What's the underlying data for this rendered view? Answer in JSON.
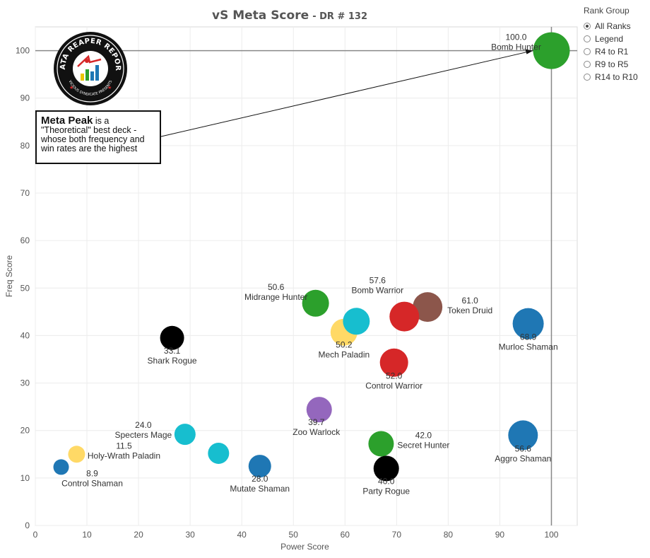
{
  "chart_data": {
    "type": "scatter",
    "title": "vS Meta Score",
    "subtitle": "- DR # 132",
    "xlabel": "Power Score",
    "ylabel": "Freq Score",
    "xlim": [
      0,
      105
    ],
    "ylim": [
      0,
      105
    ],
    "xticks": [
      0,
      10,
      20,
      30,
      40,
      50,
      60,
      70,
      80,
      90,
      100
    ],
    "yticks": [
      0,
      10,
      20,
      30,
      40,
      50,
      60,
      70,
      80,
      90,
      100
    ],
    "grid": true,
    "reference_lines": {
      "x": 100,
      "y": 100
    },
    "points": [
      {
        "name": "Bomb Hunter",
        "score": "100.0",
        "x": 100,
        "y": 100,
        "color": "#2ca02c",
        "size": 26
      },
      {
        "name": "Murloc Shaman",
        "score": "68.9",
        "x": 95.5,
        "y": 42.5,
        "color": "#1f77b4",
        "size": 22
      },
      {
        "name": "Token Druid",
        "score": "61.0",
        "x": 76,
        "y": 46,
        "color": "#8c564b",
        "size": 21
      },
      {
        "name": "Bomb Warrior",
        "score": "57.6",
        "x": 71.5,
        "y": 44,
        "color": "#d62728",
        "size": 21
      },
      {
        "name": "Aggro Shaman",
        "score": "56.6",
        "x": 94.5,
        "y": 19,
        "color": "#1f77b4",
        "size": 21
      },
      {
        "name": "Control Warrior",
        "score": "52.0",
        "x": 69.5,
        "y": 34.3,
        "color": "#d62728",
        "size": 20
      },
      {
        "name": "Midrange Hunter",
        "score": "50.6",
        "x": 54.3,
        "y": 46.8,
        "color": "#2ca02c",
        "size": 19
      },
      {
        "name": "Mech Paladin",
        "score": "50.2",
        "x": 59.8,
        "y": 40.7,
        "color": "#ffd966",
        "size": 19
      },
      {
        "name": "",
        "score": "",
        "x": 62.2,
        "y": 43,
        "color": "#17becf",
        "size": 19
      },
      {
        "name": "Secret Hunter",
        "score": "42.0",
        "x": 67,
        "y": 17.2,
        "color": "#2ca02c",
        "size": 18
      },
      {
        "name": "Party Rogue",
        "score": "40.0",
        "x": 68,
        "y": 12,
        "color": "#000000",
        "size": 18
      },
      {
        "name": "Zoo Warlock",
        "score": "39.7",
        "x": 55,
        "y": 24.4,
        "color": "#9467bd",
        "size": 18
      },
      {
        "name": "Shark Rogue",
        "score": "33.1",
        "x": 26.5,
        "y": 39.5,
        "color": "#000000",
        "size": 17
      },
      {
        "name": "Mutate Shaman",
        "score": "28.0",
        "x": 43.5,
        "y": 12.5,
        "color": "#1f77b4",
        "size": 16
      },
      {
        "name": "Specters Mage",
        "score": "24.0",
        "x": 29,
        "y": 19.2,
        "color": "#17becf",
        "size": 15
      },
      {
        "name": "",
        "score": "",
        "x": 35.5,
        "y": 15.2,
        "color": "#17becf",
        "size": 15
      },
      {
        "name": "Holy-Wrath Paladin",
        "score": "11.5",
        "x": 8,
        "y": 15,
        "color": "#ffd966",
        "size": 12
      },
      {
        "name": "Control Shaman",
        "score": "8.9",
        "x": 5,
        "y": 12.3,
        "color": "#1f77b4",
        "size": 11
      }
    ]
  },
  "legend": {
    "title": "Rank Group",
    "options": [
      "All Ranks",
      "Legend",
      "R4 to R1",
      "R9 to R5",
      "R14 to R10"
    ],
    "selected": "All Ranks"
  },
  "callout": {
    "bold": "Meta Peak",
    "text": " is a \"Theoretical\" best deck - whose both frequency and win rates are the highest"
  },
  "logo": {
    "text_top": "DATA REAPER REPORT",
    "text_bottom": "VICIOUS SYNDICATE PRESENTS"
  }
}
